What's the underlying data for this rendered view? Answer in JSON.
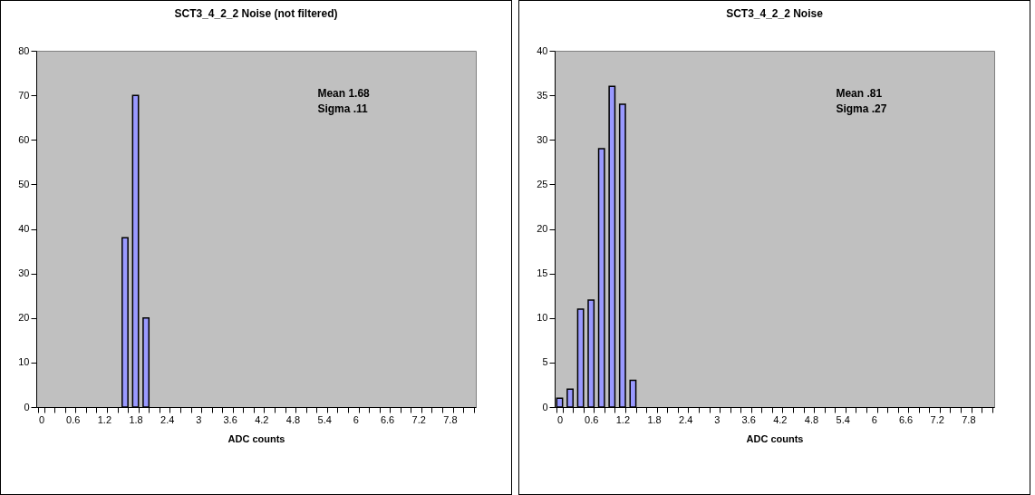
{
  "chart_data": [
    {
      "type": "bar",
      "title": "SCT3_4_2_2 Noise (not filtered)",
      "xlabel": "ADC counts",
      "categories": [
        "0",
        null,
        null,
        "0.6",
        null,
        null,
        "1.2",
        null,
        null,
        "1.8",
        null,
        null,
        "2.4",
        null,
        null,
        "3",
        null,
        null,
        "3.6",
        null,
        null,
        "4.2",
        null,
        null,
        "4.8",
        null,
        null,
        "5.4",
        null,
        null,
        "6",
        null,
        null,
        "6.6",
        null,
        null,
        "7.2",
        null,
        null,
        "7.8",
        null,
        null
      ],
      "values": [
        null,
        null,
        null,
        null,
        null,
        null,
        null,
        null,
        38,
        70,
        20,
        null,
        null,
        null,
        null,
        null,
        null,
        null,
        null,
        null,
        null,
        null,
        null,
        null,
        null,
        null,
        null,
        null,
        null,
        null,
        null,
        null,
        null,
        null,
        null,
        null,
        null,
        null,
        null,
        null,
        null,
        null
      ],
      "color": "#9999ff",
      "ylim": [
        0,
        80
      ],
      "yticks": [
        0,
        10,
        20,
        30,
        40,
        50,
        60,
        70,
        80
      ],
      "grid": false,
      "annotations": [
        "Mean 1.68",
        "Sigma .11"
      ]
    },
    {
      "type": "bar",
      "title": "SCT3_4_2_2 Noise",
      "xlabel": "ADC counts",
      "categories": [
        "0",
        null,
        null,
        "0.6",
        null,
        null,
        "1.2",
        null,
        null,
        "1.8",
        null,
        null,
        "2.4",
        null,
        null,
        "3",
        null,
        null,
        "3.6",
        null,
        null,
        "4.2",
        null,
        null,
        "4.8",
        null,
        null,
        "5.4",
        null,
        null,
        "6",
        null,
        null,
        "6.6",
        null,
        null,
        "7.2",
        null,
        null,
        "7.8",
        null,
        null
      ],
      "values": [
        1,
        2,
        11,
        12,
        29,
        36,
        34,
        3,
        null,
        null,
        null,
        null,
        null,
        null,
        null,
        null,
        null,
        null,
        null,
        null,
        null,
        null,
        null,
        null,
        null,
        null,
        null,
        null,
        null,
        null,
        null,
        null,
        null,
        null,
        null,
        null,
        null,
        null,
        null,
        null,
        null,
        null
      ],
      "color": "#9999ff",
      "ylim": [
        0,
        40
      ],
      "yticks": [
        0,
        5,
        10,
        15,
        20,
        25,
        30,
        35,
        40
      ],
      "grid": false,
      "annotations": [
        "Mean .81",
        "Sigma .27"
      ]
    }
  ]
}
